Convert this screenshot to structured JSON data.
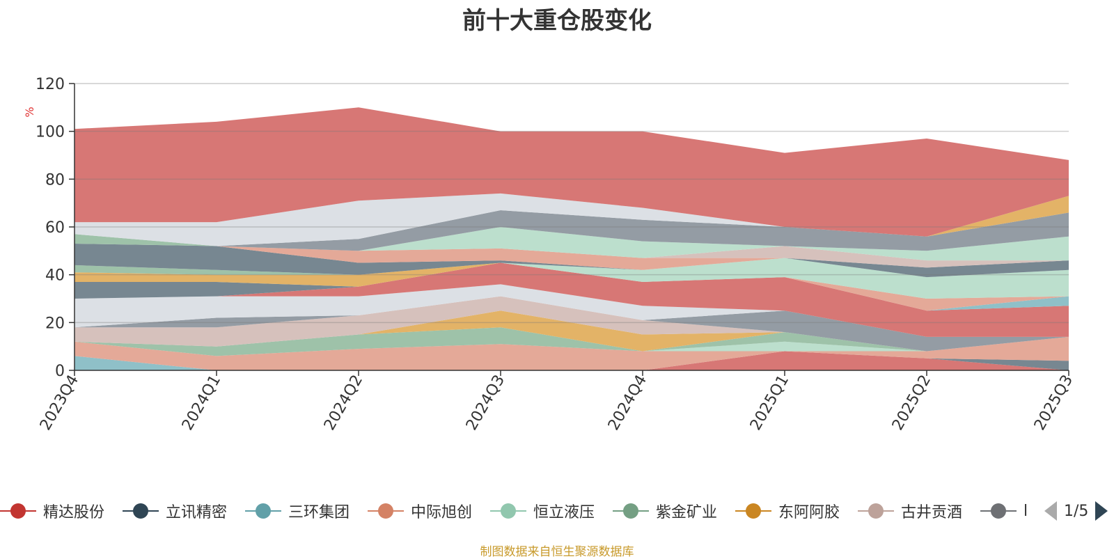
{
  "chart_data": {
    "type": "area",
    "stacked": true,
    "title": "前十大重仓股变化",
    "ylabel": "%",
    "ylim": [
      0,
      120
    ],
    "yticks": [
      "0",
      "20",
      "40",
      "60",
      "80",
      "100",
      "120"
    ],
    "categories": [
      "2023Q4",
      "2024Q1",
      "2024Q2",
      "2024Q3",
      "2024Q4",
      "2025Q1",
      "2025Q2",
      "2025Q3"
    ],
    "layers": [
      {
        "color": "#d46b69",
        "values": [
          0,
          0,
          0,
          0,
          0,
          8,
          5,
          0
        ]
      },
      {
        "color": "#6b7d88",
        "values": [
          0,
          0,
          0,
          0,
          0,
          0,
          0,
          4
        ]
      },
      {
        "color": "#86bbc3",
        "values": [
          6,
          0,
          0,
          0,
          0,
          0,
          0,
          0
        ]
      },
      {
        "color": "#e2a28f",
        "values": [
          6,
          6,
          9,
          11,
          8,
          0,
          3,
          10
        ]
      },
      {
        "color": "#b6dcc9",
        "values": [
          0,
          0,
          0,
          0,
          0,
          4,
          0,
          0
        ]
      },
      {
        "color": "#96bda2",
        "values": [
          0,
          4,
          6,
          7,
          0,
          4,
          0,
          0
        ]
      },
      {
        "color": "#e1ac5a",
        "values": [
          0,
          0,
          0,
          7,
          7,
          0,
          0,
          0
        ]
      },
      {
        "color": "#d2bcb6",
        "values": [
          6,
          8,
          8,
          6,
          6,
          0,
          0,
          0
        ]
      },
      {
        "color": "#8b949c",
        "values": [
          0,
          4,
          0,
          0,
          0,
          9,
          6,
          0
        ]
      },
      {
        "color": "#d9dde3",
        "values": [
          12,
          9,
          8,
          5,
          6,
          0,
          0,
          0
        ]
      },
      {
        "color": "#d46b69",
        "values": [
          0,
          0,
          4,
          9,
          10,
          14,
          11,
          13
        ]
      },
      {
        "color": "#86bbc3",
        "values": [
          0,
          0,
          0,
          0,
          0,
          0,
          0,
          4
        ]
      },
      {
        "color": "#e2a28f",
        "values": [
          0,
          0,
          0,
          0,
          0,
          0,
          5,
          0
        ]
      },
      {
        "color": "#b6dcc9",
        "values": [
          0,
          0,
          0,
          0,
          5,
          8,
          9,
          11
        ]
      },
      {
        "color": "#6b7d88",
        "values": [
          7,
          6,
          0,
          0,
          0,
          0,
          0,
          0
        ]
      },
      {
        "color": "#e1ac5a",
        "values": [
          4,
          3,
          5,
          0,
          0,
          0,
          0,
          0
        ]
      },
      {
        "color": "#96bda2",
        "values": [
          3,
          2,
          0,
          0,
          0,
          0,
          0,
          0
        ]
      },
      {
        "color": "#6b7d88",
        "values": [
          9,
          10,
          5,
          1,
          0,
          0,
          4,
          4
        ]
      },
      {
        "color": "#e2a28f",
        "values": [
          0,
          0,
          5,
          5,
          5,
          0,
          0,
          0
        ]
      },
      {
        "color": "#d2bcb6",
        "values": [
          0,
          0,
          0,
          0,
          0,
          5,
          3,
          0
        ]
      },
      {
        "color": "#b6dcc9",
        "values": [
          0,
          0,
          0,
          9,
          7,
          0,
          4,
          10
        ]
      },
      {
        "color": "#8b949c",
        "values": [
          0,
          0,
          5,
          7,
          9,
          8,
          6,
          10
        ]
      },
      {
        "color": "#96bda2",
        "values": [
          4,
          0,
          0,
          0,
          0,
          0,
          0,
          0
        ]
      },
      {
        "color": "#e1ac5a",
        "values": [
          0,
          0,
          0,
          0,
          0,
          0,
          0,
          7
        ]
      },
      {
        "color": "#d9dde3",
        "values": [
          5,
          10,
          16,
          7,
          5,
          0,
          0,
          0
        ]
      },
      {
        "color": "#d46b69",
        "values": [
          39,
          42,
          39,
          26,
          32,
          31,
          41,
          15
        ]
      }
    ]
  },
  "legend": {
    "items": [
      {
        "label": "精达股份",
        "color": "#c23531"
      },
      {
        "label": "立讯精密",
        "color": "#2f4554"
      },
      {
        "label": "三环集团",
        "color": "#61a0a8"
      },
      {
        "label": "中际旭创",
        "color": "#d48265"
      },
      {
        "label": "恒立液压",
        "color": "#91c7ae"
      },
      {
        "label": "紫金矿业",
        "color": "#749f83"
      },
      {
        "label": "东阿阿胶",
        "color": "#ca8622"
      },
      {
        "label": "古井贡酒",
        "color": "#bda29a"
      },
      {
        "label": "l",
        "color": "#6e7074"
      }
    ],
    "page": "1/5"
  },
  "source": "制图数据来自恒生聚源数据库"
}
